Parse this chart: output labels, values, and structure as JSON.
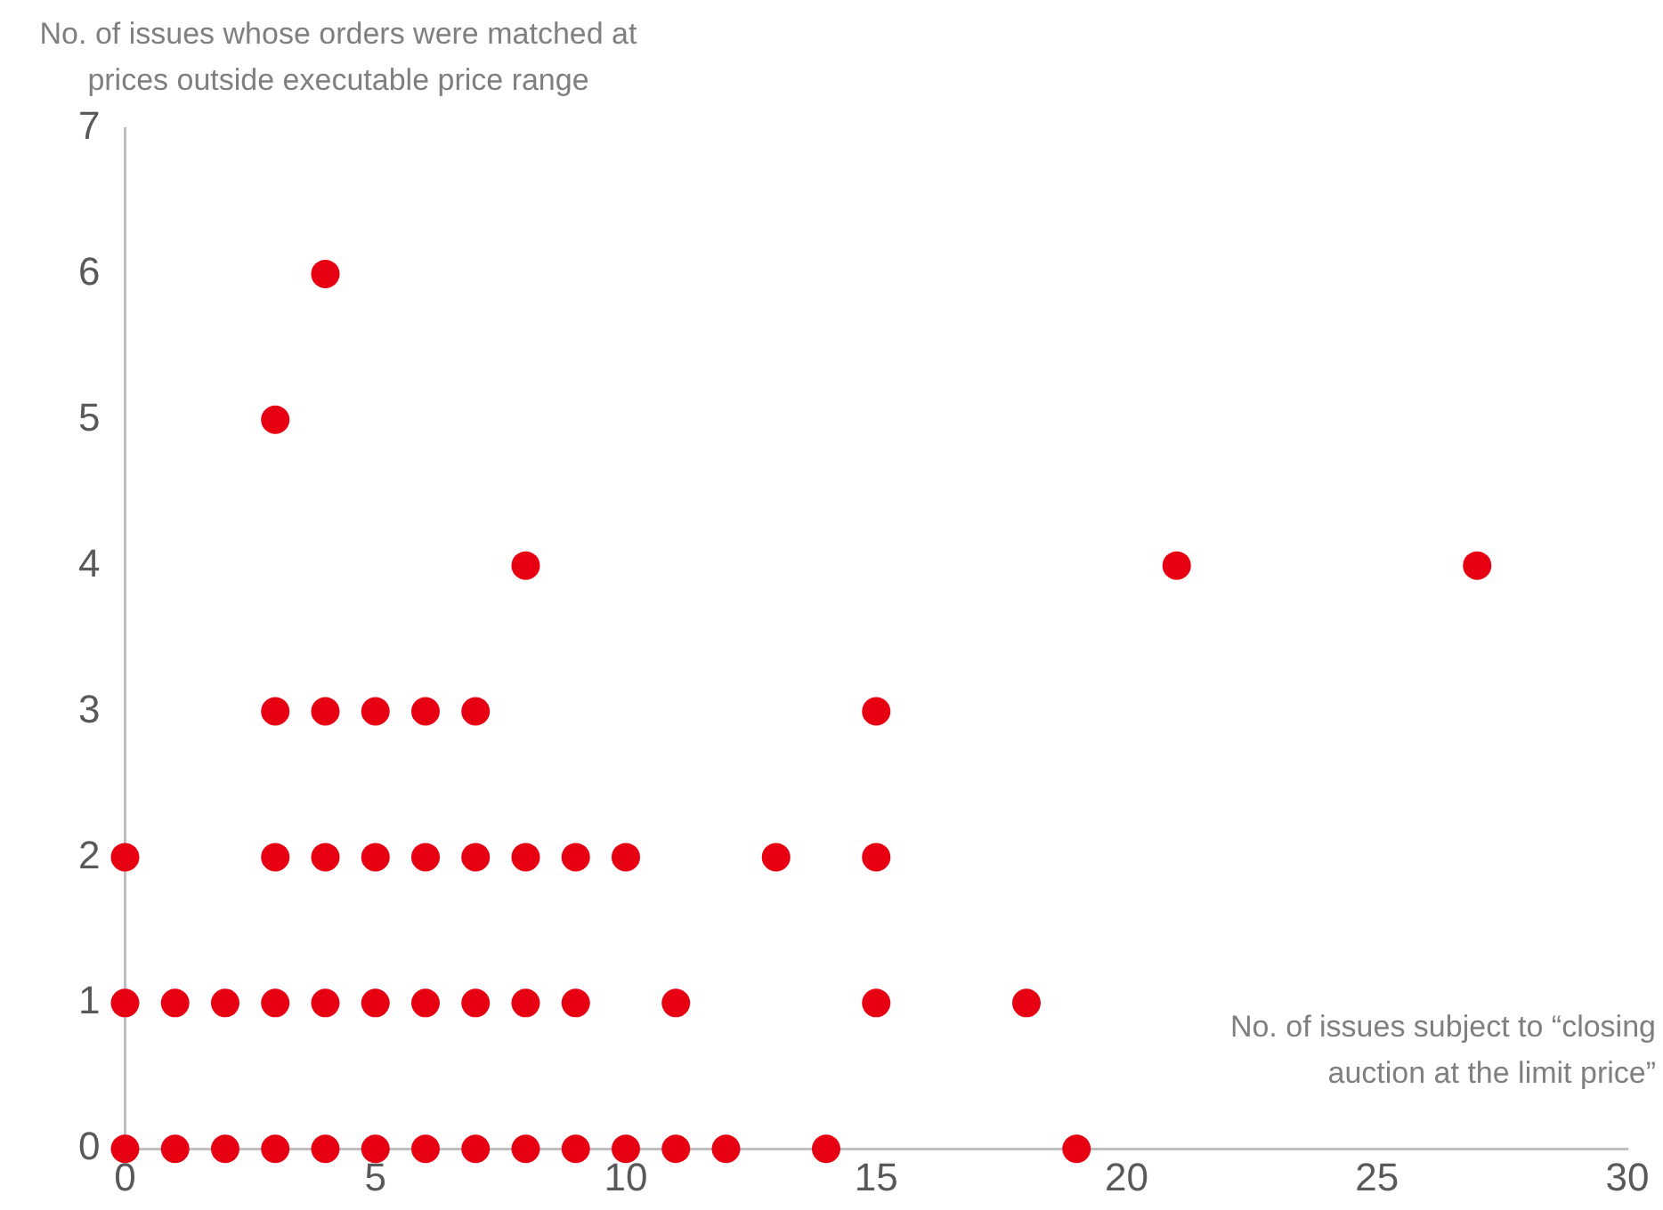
{
  "chart_data": {
    "type": "scatter",
    "xlabel": "No. of issues subject to “closing auction at the limit price”",
    "ylabel": "No. of issues whose orders were matched at prices outside executable price range",
    "series": [
      {
        "color": "#e60012",
        "x": [
          0,
          1,
          2,
          3,
          4,
          5,
          6,
          7,
          8,
          9,
          10,
          11,
          12,
          14,
          19,
          0,
          1,
          2,
          3,
          4,
          5,
          6,
          7,
          8,
          9,
          11,
          15,
          18,
          0,
          3,
          4,
          5,
          6,
          7,
          8,
          9,
          10,
          13,
          15,
          3,
          4,
          5,
          6,
          7,
          15,
          8,
          21,
          27,
          3,
          4
        ],
        "values": [
          0,
          0,
          0,
          0,
          0,
          0,
          0,
          0,
          0,
          0,
          0,
          0,
          0,
          0,
          0,
          1,
          1,
          1,
          1,
          1,
          1,
          1,
          1,
          1,
          1,
          1,
          1,
          1,
          2,
          2,
          2,
          2,
          2,
          2,
          2,
          2,
          2,
          2,
          2,
          3,
          3,
          3,
          3,
          3,
          3,
          4,
          4,
          4,
          5,
          6
        ]
      }
    ],
    "xlim": [
      0,
      30
    ],
    "xticks": [
      0,
      5,
      10,
      15,
      20,
      25,
      30
    ],
    "ylim": [
      0,
      7
    ],
    "yticks": [
      0,
      1,
      2,
      3,
      4,
      5,
      6,
      7
    ],
    "grid": false,
    "legend": false,
    "marker": "circle"
  }
}
